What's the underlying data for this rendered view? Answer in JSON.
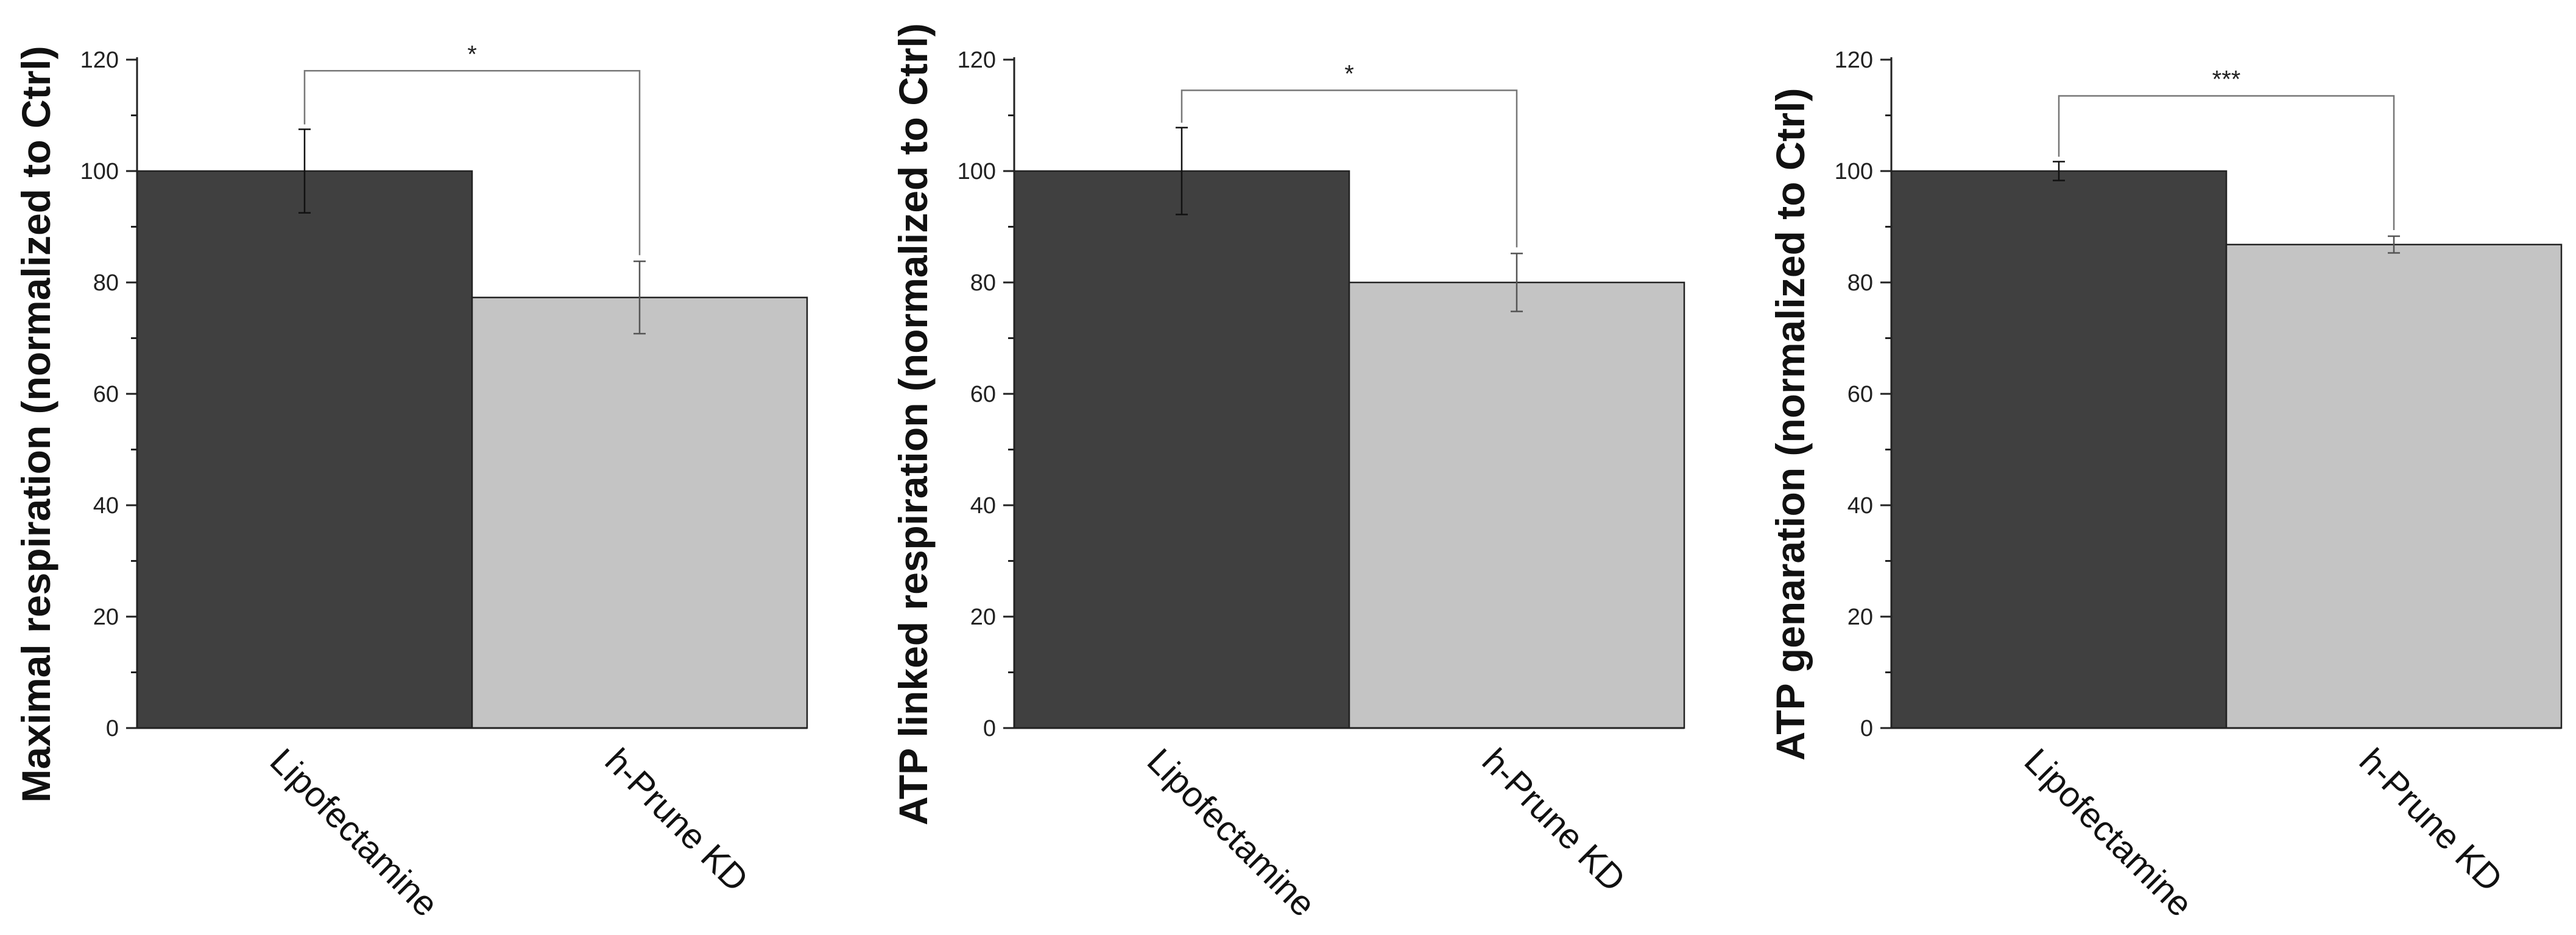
{
  "chart_data": [
    {
      "type": "bar",
      "categories": [
        "Lipofectamine",
        "h-Prune KD"
      ],
      "values": [
        100,
        77.3
      ],
      "errors": [
        7.5,
        6.5
      ],
      "ylabel": "Maximal respiration (normalized to Ctrl)",
      "ylim": [
        0,
        120
      ],
      "yticks": [
        0,
        20,
        40,
        60,
        80,
        100,
        120
      ],
      "colors": [
        "#404040",
        "#c4c4c4"
      ],
      "significance": {
        "label": "*",
        "bracket_y": 118
      },
      "grid": false
    },
    {
      "type": "bar",
      "categories": [
        "Lipofectamine",
        "h-Prune KD"
      ],
      "values": [
        100,
        80
      ],
      "errors": [
        7.8,
        5.2
      ],
      "ylabel": "ATP linked respiration (normalized to Ctrl)",
      "ylim": [
        0,
        120
      ],
      "yticks": [
        0,
        20,
        40,
        60,
        80,
        100,
        120
      ],
      "colors": [
        "#404040",
        "#c4c4c4"
      ],
      "significance": {
        "label": "*",
        "bracket_y": 114.5
      },
      "grid": false
    },
    {
      "type": "bar",
      "categories": [
        "Lipofectamine",
        "h-Prune KD"
      ],
      "values": [
        100,
        86.8
      ],
      "errors": [
        1.7,
        1.5
      ],
      "ylabel": "ATP genaration (normalized to Ctrl)",
      "ylim": [
        0,
        120
      ],
      "yticks": [
        0,
        20,
        40,
        60,
        80,
        100,
        120
      ],
      "colors": [
        "#404040",
        "#c4c4c4"
      ],
      "significance": {
        "label": "***",
        "bracket_y": 113.5
      },
      "grid": false
    }
  ]
}
